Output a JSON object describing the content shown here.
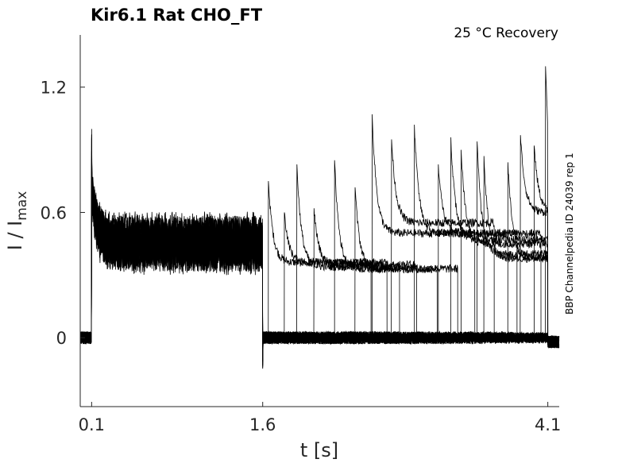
{
  "chart_data": {
    "type": "line",
    "title": "Kir6.1  Rat  CHO_FT",
    "condition": "25 °C  Recovery",
    "side_label": "BBP Channelpedia ID 24039 rep 1",
    "xlabel": "t [s]",
    "ylabel_main": "I / I",
    "ylabel_sub": "max",
    "x_ticks": [
      "0.1",
      "1.6",
      "4.1"
    ],
    "x_tick_values": [
      0.1,
      1.6,
      4.1
    ],
    "y_ticks": [
      "0",
      "0.6",
      "1.2"
    ],
    "y_tick_values": [
      0,
      0.6,
      1.2
    ],
    "xlim": [
      0,
      4.2
    ],
    "ylim": [
      -0.33,
      1.45
    ],
    "grid": false,
    "line_color": "#000000",
    "series": [
      {
        "description": "overlaid recovery sweeps",
        "phases": [
          {
            "t_start": 0.0,
            "t_end": 0.1,
            "level": 0.0
          },
          {
            "t_start": 0.1,
            "t_end": 1.6,
            "level": 0.45,
            "peak": 1.0
          },
          {
            "t_start": 1.6,
            "t_end": 4.1,
            "level": 0.0
          }
        ],
        "recovery_pulse_times": [
          1.65,
          1.79,
          1.9,
          2.05,
          2.23,
          2.41,
          2.56,
          2.73,
          2.93,
          3.14,
          3.25,
          3.34,
          3.48,
          3.54,
          3.75,
          3.86,
          3.98,
          4.08
        ],
        "recovery_levels": [
          0.36,
          0.36,
          0.34,
          0.35,
          0.33,
          0.33,
          0.5,
          0.55,
          0.5,
          0.5,
          0.47,
          0.45,
          0.4,
          0.38,
          0.38,
          0.6,
          0.6,
          0.6
        ],
        "recovery_peaks": [
          0.75,
          0.6,
          0.83,
          0.62,
          0.85,
          0.72,
          1.07,
          0.95,
          1.02,
          0.83,
          0.96,
          0.9,
          0.94,
          0.87,
          0.84,
          0.97,
          0.92,
          1.3
        ]
      }
    ]
  }
}
